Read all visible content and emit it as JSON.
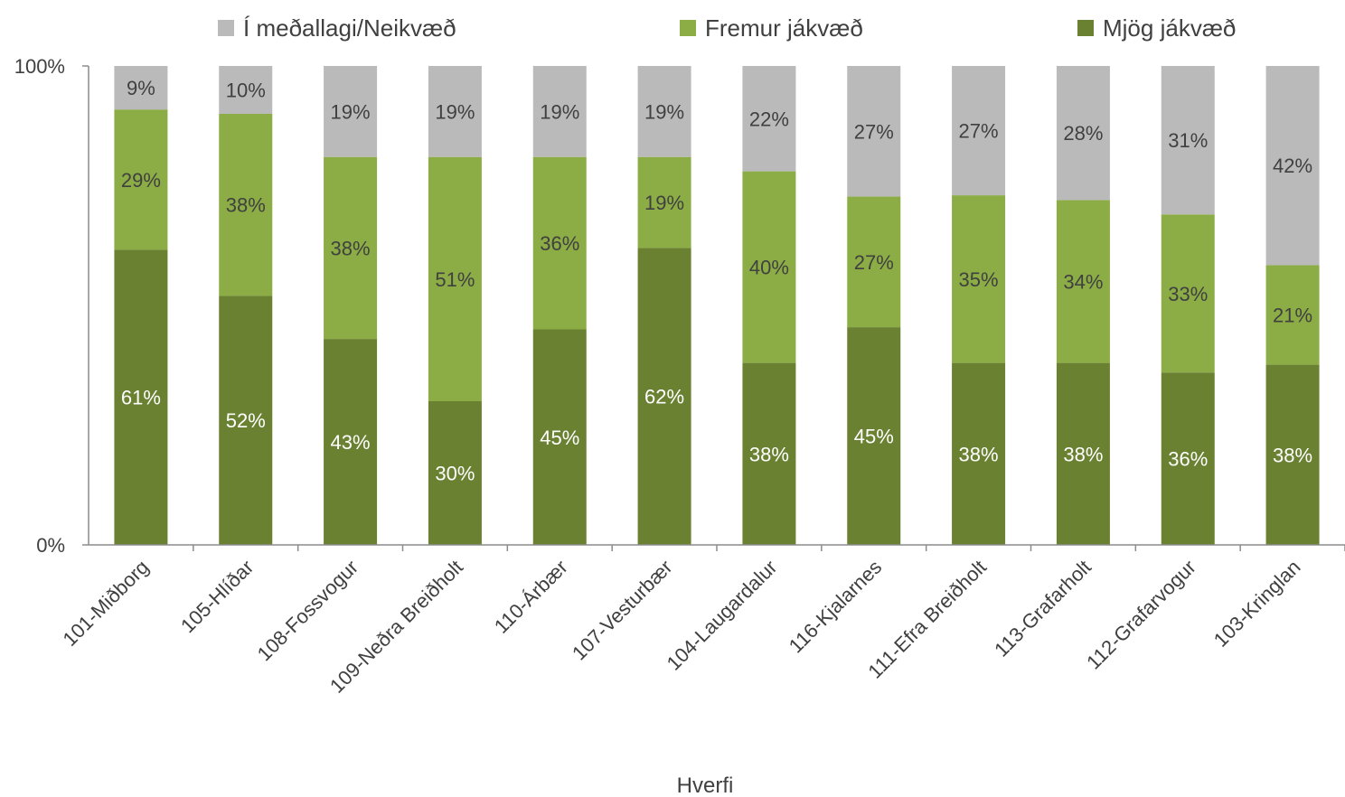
{
  "chart_data": {
    "type": "bar",
    "stacked": true,
    "percent_stacked": true,
    "categories": [
      "101-Miðborg",
      "105-Hlíðar",
      "108-Fossvogur",
      "109-Neðra Breiðholt",
      "110-Árbær",
      "107-Vesturbær",
      "104-Laugardalur",
      "116-Kjalarnes",
      "111-Efra Breiðholt",
      "113-Grafarholt",
      "112-Grafarvogur",
      "103-Kringlan"
    ],
    "series": [
      {
        "name": "Mjög jákvæð",
        "color": "#6a8132",
        "label_color": "#ffffff",
        "values": [
          61,
          52,
          43,
          30,
          45,
          62,
          38,
          45,
          38,
          38,
          36,
          38
        ]
      },
      {
        "name": "Fremur jákvæð",
        "color": "#8cad45",
        "label_color": "#404040",
        "values": [
          29,
          38,
          38,
          51,
          36,
          19,
          40,
          27,
          35,
          34,
          33,
          21
        ]
      },
      {
        "name": "Í meðallagi/Neikvæð",
        "color": "#bababa",
        "label_color": "#404040",
        "values": [
          9,
          10,
          19,
          19,
          19,
          19,
          22,
          27,
          27,
          28,
          31,
          42
        ]
      }
    ],
    "data_labels": [
      [
        "61%",
        "52%",
        "43%",
        "30%",
        "45%",
        "62%",
        "38%",
        "45%",
        "38%",
        "38%",
        "36%",
        "38%"
      ],
      [
        "29%",
        "38%",
        "38%",
        "51%",
        "36%",
        "19%",
        "40%",
        "27%",
        "35%",
        "34%",
        "33%",
        "21%"
      ],
      [
        "9%",
        "10%",
        "19%",
        "19%",
        "19%",
        "19%",
        "22%",
        "27%",
        "27%",
        "28%",
        "31%",
        "42%"
      ]
    ],
    "legend": [
      "Í meðallagi/Neikvæð",
      "Fremur jákvæð",
      "Mjög jákvæð"
    ],
    "legend_position": "top",
    "y_ticks": [
      "0%",
      "100%"
    ],
    "ylim": [
      0,
      100
    ],
    "xlabel": "Hverfi",
    "ylabel": "",
    "title": "",
    "grid": false
  }
}
